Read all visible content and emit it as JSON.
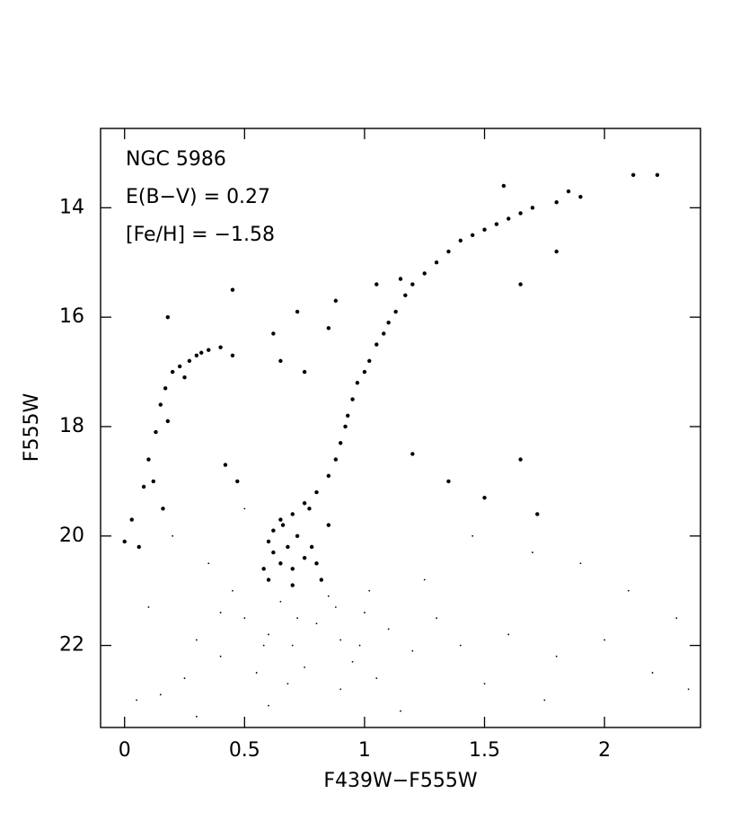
{
  "chart_data": {
    "type": "scatter",
    "xlabel": "F439W−F555W",
    "ylabel": "F555W",
    "annotations": [
      "NGC 5986",
      "E(B−V) = 0.27",
      "[Fe/H] = −1.58"
    ],
    "xlim": [
      -0.1,
      2.4
    ],
    "ylim": [
      23.5,
      12.55
    ],
    "xticks": [
      0,
      0.5,
      1,
      1.5,
      2
    ],
    "yticks": [
      14,
      16,
      18,
      20,
      22
    ],
    "series": [
      {
        "color": "#000000",
        "marker_size": 2.2,
        "x": [
          0.95,
          0.97,
          1.0,
          1.02,
          1.05,
          1.08,
          1.1,
          1.13,
          1.17,
          1.2,
          1.25,
          1.3,
          1.35,
          1.4,
          1.45,
          1.5,
          1.55,
          1.6,
          1.65,
          1.7,
          1.8,
          1.85,
          1.9,
          2.12,
          2.22,
          1.58,
          0.93,
          0.92,
          0.9,
          0.88,
          0.85,
          0.8,
          0.75,
          0.7,
          0.65,
          0.62,
          0.6,
          0.62,
          0.65,
          0.7,
          0.75,
          0.72,
          0.68,
          0.78,
          0.8,
          0.58,
          0.6,
          0.85,
          0.82,
          0.7,
          0.66,
          0.77,
          0.0,
          0.03,
          0.06,
          0.08,
          0.1,
          0.13,
          0.15,
          0.17,
          0.2,
          0.23,
          0.27,
          0.3,
          0.35,
          0.4,
          0.45,
          0.12,
          0.16,
          0.18,
          0.25,
          0.32,
          0.62,
          0.65,
          0.72,
          0.75,
          0.85,
          0.88,
          1.05,
          1.15,
          1.2,
          1.35,
          1.5,
          1.65,
          1.72,
          1.8,
          1.65,
          0.45,
          0.18,
          0.42,
          0.47
        ],
        "y": [
          17.5,
          17.2,
          17.0,
          16.8,
          16.5,
          16.3,
          16.1,
          15.9,
          15.6,
          15.4,
          15.2,
          15.0,
          14.8,
          14.6,
          14.5,
          14.4,
          14.3,
          14.2,
          14.1,
          14.0,
          13.9,
          13.7,
          13.8,
          13.4,
          13.4,
          13.6,
          17.8,
          18.0,
          18.3,
          18.6,
          18.9,
          19.2,
          19.4,
          19.6,
          19.7,
          19.9,
          20.1,
          20.3,
          20.5,
          20.6,
          20.4,
          20.0,
          20.2,
          20.2,
          20.5,
          20.6,
          20.8,
          19.8,
          20.8,
          20.9,
          19.8,
          19.5,
          20.1,
          19.7,
          20.2,
          19.1,
          18.6,
          18.1,
          17.6,
          17.3,
          17.0,
          16.9,
          16.8,
          16.7,
          16.6,
          16.55,
          16.7,
          19.0,
          19.5,
          17.9,
          17.1,
          16.65,
          16.3,
          16.8,
          15.9,
          17.0,
          16.2,
          15.7,
          15.4,
          15.3,
          18.5,
          19.0,
          19.3,
          18.6,
          19.6,
          14.8,
          15.4,
          15.5,
          16.0,
          18.7,
          19.0
        ]
      },
      {
        "color": "#000000",
        "marker_size": 0.9,
        "x": [
          0.5,
          0.6,
          0.7,
          0.8,
          0.9,
          1.0,
          1.1,
          1.2,
          0.4,
          0.3,
          0.55,
          0.75,
          0.95,
          1.3,
          0.65,
          0.85,
          1.05,
          0.45,
          0.25,
          0.15,
          1.4,
          1.6,
          1.8,
          2.0,
          2.2,
          2.35,
          0.05,
          0.1,
          1.5,
          1.9,
          2.1,
          1.7,
          0.35,
          0.5,
          1.25,
          0.9,
          0.6,
          1.15,
          0.3,
          1.75,
          2.3,
          0.2,
          1.45,
          0.72,
          0.58,
          0.88,
          0.98,
          0.68,
          1.02,
          0.4
        ],
        "y": [
          21.5,
          21.8,
          22.0,
          21.6,
          21.9,
          21.4,
          21.7,
          22.1,
          22.2,
          21.9,
          22.5,
          22.4,
          22.3,
          21.5,
          21.2,
          21.1,
          22.6,
          21.0,
          22.6,
          22.9,
          22.0,
          21.8,
          22.2,
          21.9,
          22.5,
          22.8,
          23.0,
          21.3,
          22.7,
          20.5,
          21.0,
          20.3,
          20.5,
          19.5,
          20.8,
          22.8,
          23.1,
          23.2,
          23.3,
          23.0,
          21.5,
          20.0,
          20.0,
          21.5,
          22.0,
          21.3,
          22.0,
          22.7,
          21.0,
          21.4
        ]
      }
    ]
  }
}
